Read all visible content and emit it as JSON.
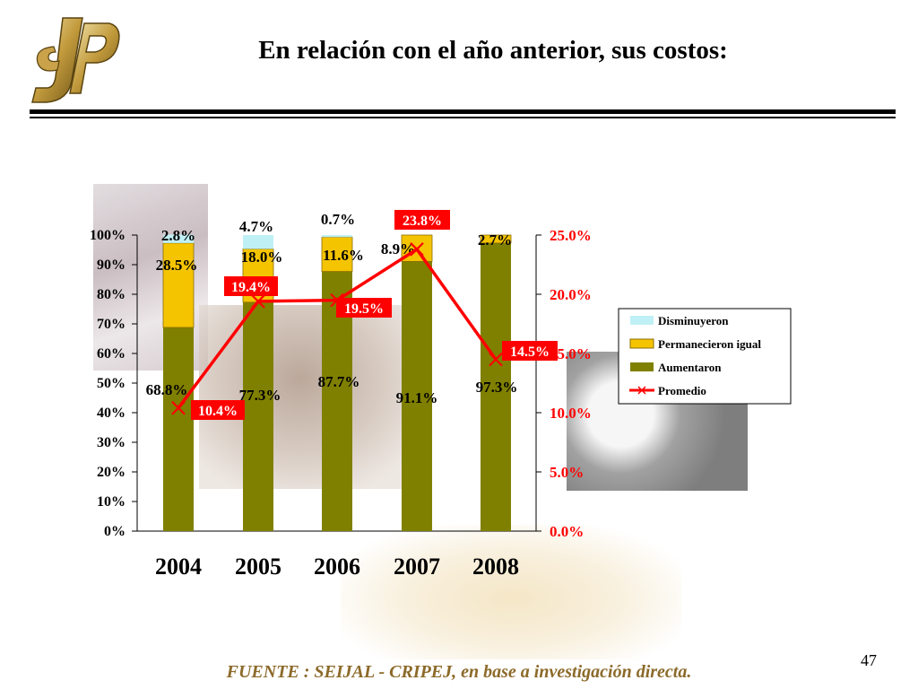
{
  "slide": {
    "title": "En relación con el año anterior, sus costos:",
    "footer": "FUENTE :  SEIJAL - CRIPEJ,  en base a investigación directa.",
    "page_number": "47"
  },
  "colors": {
    "aumentaron": "#808000",
    "permanecieron": "#f5c400",
    "disminuyeron": "#bff0f5",
    "promedio": "#ff0000",
    "right_axis_text": "#ff0000",
    "footer_text": "#8c6a2a"
  },
  "chart_data": {
    "type": "bar",
    "stacked": true,
    "categories": [
      "2004",
      "2005",
      "2006",
      "2007",
      "2008"
    ],
    "series": [
      {
        "name": "Aumentaron",
        "values": [
          68.8,
          77.3,
          87.7,
          91.1,
          97.3
        ],
        "labels": [
          "68.8%",
          "77.3%",
          "87.7%",
          "91.1%",
          "97.3%"
        ]
      },
      {
        "name": "Permanecieron igual",
        "values": [
          28.5,
          18.0,
          11.6,
          8.9,
          2.7
        ],
        "labels": [
          "28.5%",
          "18.0%",
          "11.6%",
          "8.9%",
          "2.7%"
        ]
      },
      {
        "name": "Disminuyeron",
        "values": [
          2.8,
          4.7,
          0.7,
          0.0,
          0.0
        ],
        "labels": [
          "2.8%",
          "4.7%",
          "0.7%",
          "",
          ""
        ]
      }
    ],
    "line_series": {
      "name": "Promedio",
      "axis": "right",
      "values": [
        10.4,
        19.4,
        19.5,
        23.8,
        14.5
      ],
      "labels": [
        "10.4%",
        "19.4%",
        "19.5%",
        "23.8%",
        "14.5%"
      ]
    },
    "left_axis": {
      "ylim": [
        0,
        100
      ],
      "ticks": [
        "0%",
        "10%",
        "20%",
        "30%",
        "40%",
        "50%",
        "60%",
        "70%",
        "80%",
        "90%",
        "100%"
      ]
    },
    "right_axis": {
      "ylim": [
        0,
        25
      ],
      "ticks": [
        "0.0%",
        "5.0%",
        "10.0%",
        "15.0%",
        "20.0%",
        "25.0%"
      ]
    },
    "legend": {
      "position": "right",
      "entries": [
        "Disminuyeron",
        "Permanecieron igual",
        "Aumentaron",
        "Promedio"
      ]
    }
  }
}
